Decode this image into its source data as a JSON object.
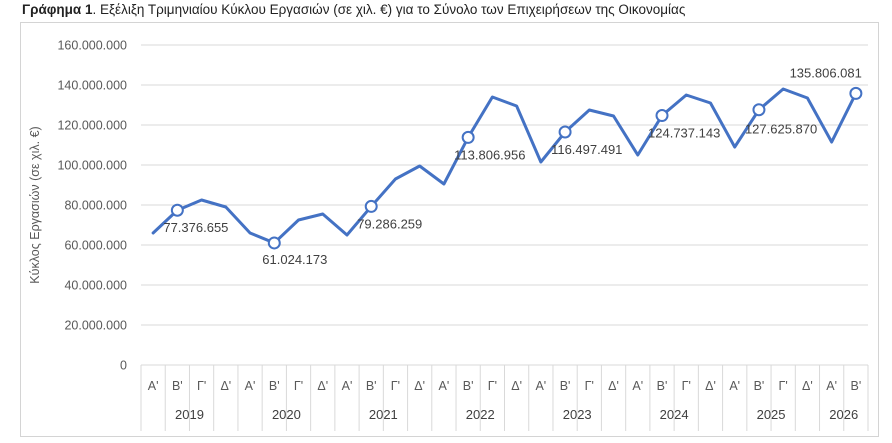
{
  "caption": {
    "lead": "Γράφημα 1",
    "text": ". Εξέλιξη Τριμηνιαίου Κύκλου Εργασιών (σε χιλ. €) για το Σύνολο των Επιχειρήσεων της Οικονομίας"
  },
  "chart_data": {
    "type": "line",
    "title": "",
    "xlabel": "",
    "ylabel": "Κύκλος Εργασιών (σε χιλ. €)",
    "ylim": [
      0,
      160000000
    ],
    "yticks": [
      0,
      20000000,
      40000000,
      60000000,
      80000000,
      100000000,
      120000000,
      140000000,
      160000000
    ],
    "ytick_labels": [
      "0",
      "20.000.000",
      "40.000.000",
      "60.000.000",
      "80.000.000",
      "100.000.000",
      "120.000.000",
      "140.000.000",
      "160.000.000"
    ],
    "grid": true,
    "legend": "none",
    "color": "#4472c4",
    "years": [
      "2019",
      "2020",
      "2021",
      "2022",
      "2023",
      "2024",
      "2025",
      "2026"
    ],
    "categories": [
      "Α'",
      "Β'",
      "Γ'",
      "Δ'",
      "Α'",
      "Β'",
      "Γ'",
      "Δ'",
      "Α'",
      "Β'",
      "Γ'",
      "Δ'",
      "Α'",
      "Β'",
      "Γ'",
      "Δ'",
      "Α'",
      "Β'",
      "Γ'",
      "Δ'",
      "Α'",
      "Β'",
      "Γ'",
      "Δ'",
      "Α'",
      "Β'",
      "Γ'",
      "Δ'",
      "Α'",
      "Β'"
    ],
    "year_of_category": [
      "2019",
      "2019",
      "2019",
      "2019",
      "2020",
      "2020",
      "2020",
      "2020",
      "2021",
      "2021",
      "2021",
      "2021",
      "2022",
      "2022",
      "2022",
      "2022",
      "2023",
      "2023",
      "2023",
      "2023",
      "2024",
      "2024",
      "2024",
      "2024",
      "2025",
      "2025",
      "2025",
      "2025",
      "2026",
      "2026"
    ],
    "values": [
      66000000,
      77376655,
      82500000,
      79000000,
      66000000,
      61024173,
      72500000,
      75500000,
      65000000,
      79286259,
      93000000,
      99500000,
      90500000,
      113806956,
      134000000,
      129500000,
      101500000,
      116497491,
      127500000,
      124500000,
      105000000,
      124737143,
      135000000,
      131000000,
      109000000,
      127625870,
      138000000,
      133500000,
      111500000,
      135806081
    ],
    "labeled_points": [
      {
        "index": 1,
        "text": "77.376.655"
      },
      {
        "index": 5,
        "text": "61.024.173"
      },
      {
        "index": 9,
        "text": "79.286.259"
      },
      {
        "index": 13,
        "text": "113.806.956"
      },
      {
        "index": 17,
        "text": "116.497.491"
      },
      {
        "index": 21,
        "text": "124.737.143"
      },
      {
        "index": 25,
        "text": "127.625.870"
      },
      {
        "index": 29,
        "text": "135.806.081"
      }
    ]
  }
}
